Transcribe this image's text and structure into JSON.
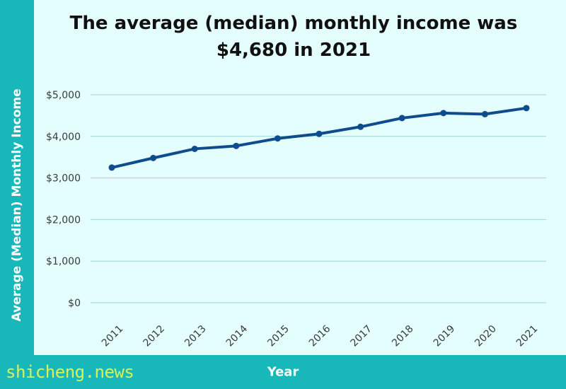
{
  "chart_data": {
    "type": "line",
    "title": "The average (median) monthly income was $4,680 in 2021",
    "xlabel": "Year",
    "ylabel": "Average (Median) Monthly Income",
    "x": [
      "2011",
      "2012",
      "2013",
      "2014",
      "2015",
      "2016",
      "2017",
      "2018",
      "2019",
      "2020",
      "2021"
    ],
    "series": [
      {
        "values": [
          3250,
          3480,
          3700,
          3770,
          3950,
          4060,
          4230,
          4440,
          4560,
          4534,
          4680
        ]
      }
    ],
    "ylim": [
      0,
      5000
    ],
    "yticks": [
      0,
      1000,
      2000,
      3000,
      4000,
      5000
    ],
    "ytick_labels": [
      "$0",
      "$1,000",
      "$2,000",
      "$3,000",
      "$4,000",
      "$5,000"
    ],
    "grid": "horizontal",
    "line_color": "#0f4c8e",
    "grid_color": "#9fd6d6"
  },
  "watermark": "shicheng.news"
}
